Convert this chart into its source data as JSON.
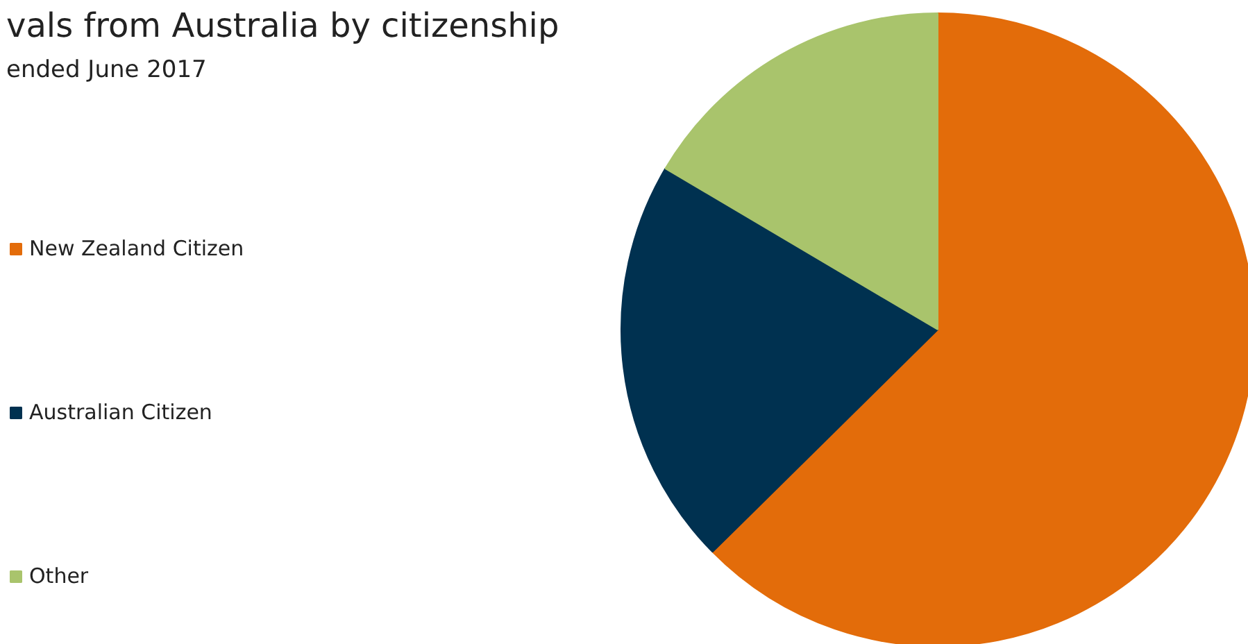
{
  "chart_data": {
    "type": "pie",
    "title": "vals from Australia by citizenship",
    "subtitle": "ended June 2017",
    "categories": [
      "New Zealand Citizen",
      "Australian Citizen",
      "Other"
    ],
    "values": [
      62.6,
      20.9,
      16.5
    ],
    "colors": [
      "#e36c0a",
      "#003150",
      "#a9c46c"
    ],
    "legend": "left"
  }
}
